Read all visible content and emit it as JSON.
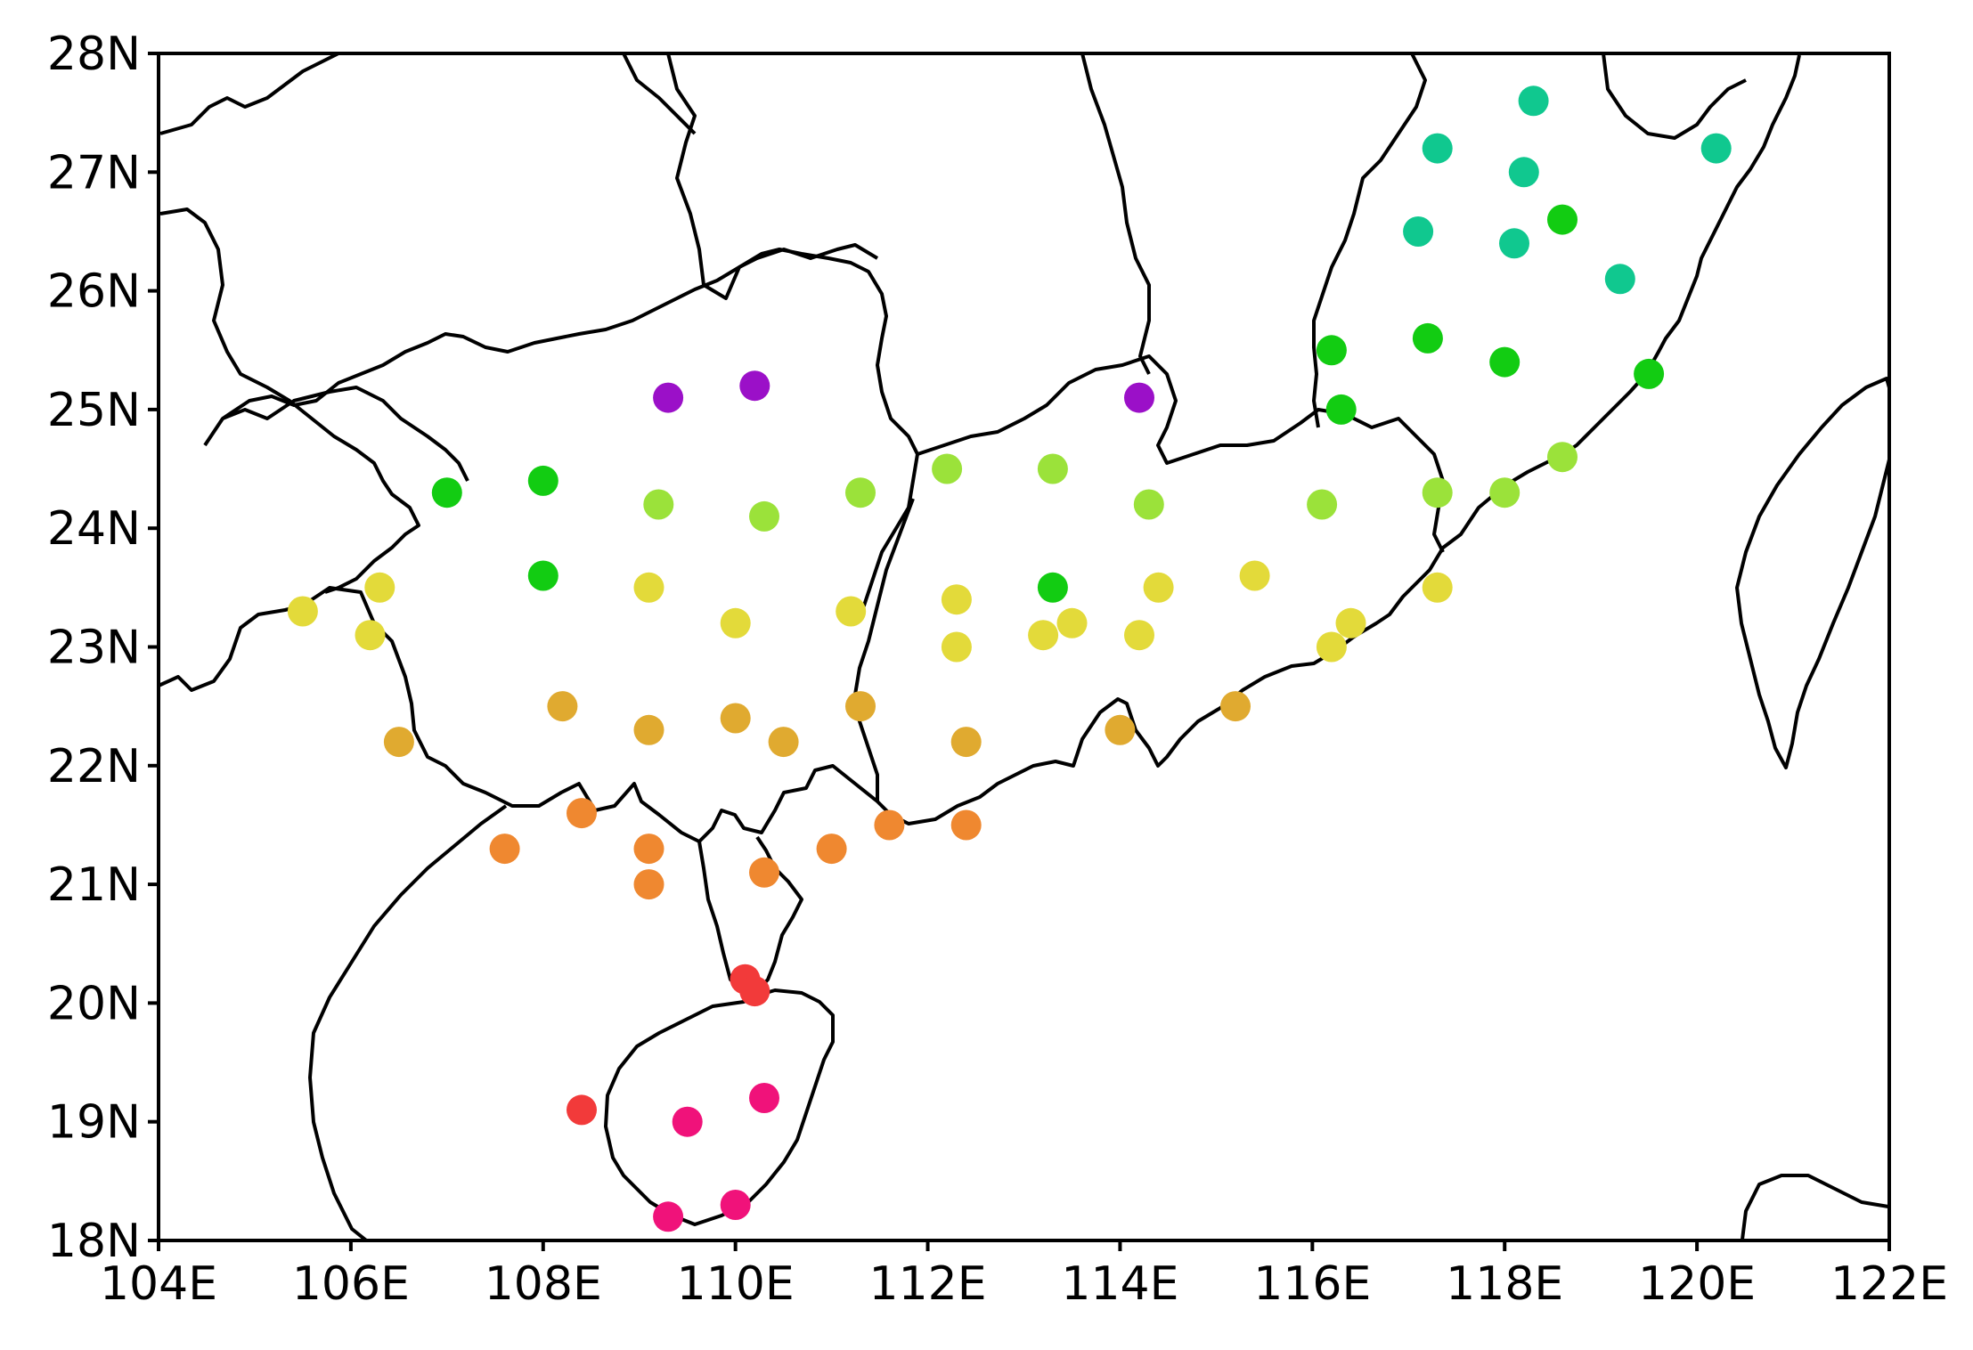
{
  "map": {
    "lon_range": [
      104,
      122
    ],
    "lat_range": [
      18,
      28
    ],
    "x_ticks": [
      {
        "value": 104,
        "label": "104E"
      },
      {
        "value": 106,
        "label": "106E"
      },
      {
        "value": 108,
        "label": "108E"
      },
      {
        "value": 110,
        "label": "110E"
      },
      {
        "value": 112,
        "label": "112E"
      },
      {
        "value": 114,
        "label": "114E"
      },
      {
        "value": 116,
        "label": "116E"
      },
      {
        "value": 118,
        "label": "118E"
      },
      {
        "value": 120,
        "label": "120E"
      },
      {
        "value": 122,
        "label": "122E"
      }
    ],
    "y_ticks": [
      {
        "value": 18,
        "label": "18N"
      },
      {
        "value": 19,
        "label": "19N"
      },
      {
        "value": 20,
        "label": "20N"
      },
      {
        "value": 21,
        "label": "21N"
      },
      {
        "value": 22,
        "label": "22N"
      },
      {
        "value": 23,
        "label": "23N"
      },
      {
        "value": 24,
        "label": "24N"
      },
      {
        "value": 25,
        "label": "25N"
      },
      {
        "value": 26,
        "label": "26N"
      },
      {
        "value": 27,
        "label": "27N"
      },
      {
        "value": 28,
        "label": "28N"
      }
    ],
    "palette": {
      "purple": "#9b10c8",
      "green": "#12cc12",
      "teal": "#10c88f",
      "lightgreen": "#9be23a",
      "yellow": "#e3da3a",
      "gold": "#e0aa30",
      "orange": "#ef8830",
      "red": "#f23a3a",
      "pink": "#f0127a"
    },
    "stations": [
      {
        "lon": 109.3,
        "lat": 25.1,
        "color": "purple"
      },
      {
        "lon": 110.2,
        "lat": 25.2,
        "color": "purple"
      },
      {
        "lon": 114.2,
        "lat": 25.1,
        "color": "purple"
      },
      {
        "lon": 107.0,
        "lat": 24.3,
        "color": "green"
      },
      {
        "lon": 108.0,
        "lat": 24.4,
        "color": "green"
      },
      {
        "lon": 108.0,
        "lat": 23.6,
        "color": "green"
      },
      {
        "lon": 113.3,
        "lat": 23.5,
        "color": "green"
      },
      {
        "lon": 116.2,
        "lat": 25.5,
        "color": "green"
      },
      {
        "lon": 116.3,
        "lat": 25.0,
        "color": "green"
      },
      {
        "lon": 117.2,
        "lat": 25.6,
        "color": "green"
      },
      {
        "lon": 118.0,
        "lat": 25.4,
        "color": "green"
      },
      {
        "lon": 118.6,
        "lat": 26.6,
        "color": "green"
      },
      {
        "lon": 119.5,
        "lat": 25.3,
        "color": "green"
      },
      {
        "lon": 118.3,
        "lat": 27.6,
        "color": "teal"
      },
      {
        "lon": 117.3,
        "lat": 27.2,
        "color": "teal"
      },
      {
        "lon": 118.2,
        "lat": 27.0,
        "color": "teal"
      },
      {
        "lon": 117.1,
        "lat": 26.5,
        "color": "teal"
      },
      {
        "lon": 118.1,
        "lat": 26.4,
        "color": "teal"
      },
      {
        "lon": 119.2,
        "lat": 26.1,
        "color": "teal"
      },
      {
        "lon": 120.2,
        "lat": 27.2,
        "color": "teal"
      },
      {
        "lon": 109.2,
        "lat": 24.2,
        "color": "lightgreen"
      },
      {
        "lon": 110.3,
        "lat": 24.1,
        "color": "lightgreen"
      },
      {
        "lon": 111.3,
        "lat": 24.3,
        "color": "lightgreen"
      },
      {
        "lon": 112.2,
        "lat": 24.5,
        "color": "lightgreen"
      },
      {
        "lon": 113.3,
        "lat": 24.5,
        "color": "lightgreen"
      },
      {
        "lon": 114.3,
        "lat": 24.2,
        "color": "lightgreen"
      },
      {
        "lon": 116.1,
        "lat": 24.2,
        "color": "lightgreen"
      },
      {
        "lon": 117.3,
        "lat": 24.3,
        "color": "lightgreen"
      },
      {
        "lon": 118.0,
        "lat": 24.3,
        "color": "lightgreen"
      },
      {
        "lon": 118.6,
        "lat": 24.6,
        "color": "lightgreen"
      },
      {
        "lon": 105.5,
        "lat": 23.3,
        "color": "yellow"
      },
      {
        "lon": 106.2,
        "lat": 23.1,
        "color": "yellow"
      },
      {
        "lon": 106.3,
        "lat": 23.5,
        "color": "yellow"
      },
      {
        "lon": 109.1,
        "lat": 23.5,
        "color": "yellow"
      },
      {
        "lon": 110.0,
        "lat": 23.2,
        "color": "yellow"
      },
      {
        "lon": 111.2,
        "lat": 23.3,
        "color": "yellow"
      },
      {
        "lon": 112.3,
        "lat": 23.4,
        "color": "yellow"
      },
      {
        "lon": 112.3,
        "lat": 23.0,
        "color": "yellow"
      },
      {
        "lon": 113.2,
        "lat": 23.1,
        "color": "yellow"
      },
      {
        "lon": 113.5,
        "lat": 23.2,
        "color": "yellow"
      },
      {
        "lon": 114.2,
        "lat": 23.1,
        "color": "yellow"
      },
      {
        "lon": 114.4,
        "lat": 23.5,
        "color": "yellow"
      },
      {
        "lon": 115.4,
        "lat": 23.6,
        "color": "yellow"
      },
      {
        "lon": 116.2,
        "lat": 23.0,
        "color": "yellow"
      },
      {
        "lon": 116.4,
        "lat": 23.2,
        "color": "yellow"
      },
      {
        "lon": 117.3,
        "lat": 23.5,
        "color": "yellow"
      },
      {
        "lon": 106.5,
        "lat": 22.2,
        "color": "gold"
      },
      {
        "lon": 108.2,
        "lat": 22.5,
        "color": "gold"
      },
      {
        "lon": 109.1,
        "lat": 22.3,
        "color": "gold"
      },
      {
        "lon": 110.0,
        "lat": 22.4,
        "color": "gold"
      },
      {
        "lon": 110.5,
        "lat": 22.2,
        "color": "gold"
      },
      {
        "lon": 111.3,
        "lat": 22.5,
        "color": "gold"
      },
      {
        "lon": 112.4,
        "lat": 22.2,
        "color": "gold"
      },
      {
        "lon": 114.0,
        "lat": 22.3,
        "color": "gold"
      },
      {
        "lon": 115.2,
        "lat": 22.5,
        "color": "gold"
      },
      {
        "lon": 107.6,
        "lat": 21.3,
        "color": "orange"
      },
      {
        "lon": 108.4,
        "lat": 21.6,
        "color": "orange"
      },
      {
        "lon": 109.1,
        "lat": 21.3,
        "color": "orange"
      },
      {
        "lon": 109.1,
        "lat": 21.0,
        "color": "orange"
      },
      {
        "lon": 110.3,
        "lat": 21.1,
        "color": "orange"
      },
      {
        "lon": 111.0,
        "lat": 21.3,
        "color": "orange"
      },
      {
        "lon": 111.6,
        "lat": 21.5,
        "color": "orange"
      },
      {
        "lon": 112.4,
        "lat": 21.5,
        "color": "orange"
      },
      {
        "lon": 110.1,
        "lat": 20.2,
        "color": "red"
      },
      {
        "lon": 110.2,
        "lat": 20.1,
        "color": "red"
      },
      {
        "lon": 108.4,
        "lat": 19.1,
        "color": "red"
      },
      {
        "lon": 109.5,
        "lat": 19.0,
        "color": "pink"
      },
      {
        "lon": 110.3,
        "lat": 19.2,
        "color": "pink"
      },
      {
        "lon": 110.0,
        "lat": 18.3,
        "color": "pink"
      },
      {
        "lon": 109.3,
        "lat": 18.2,
        "color": "pink"
      }
    ]
  }
}
